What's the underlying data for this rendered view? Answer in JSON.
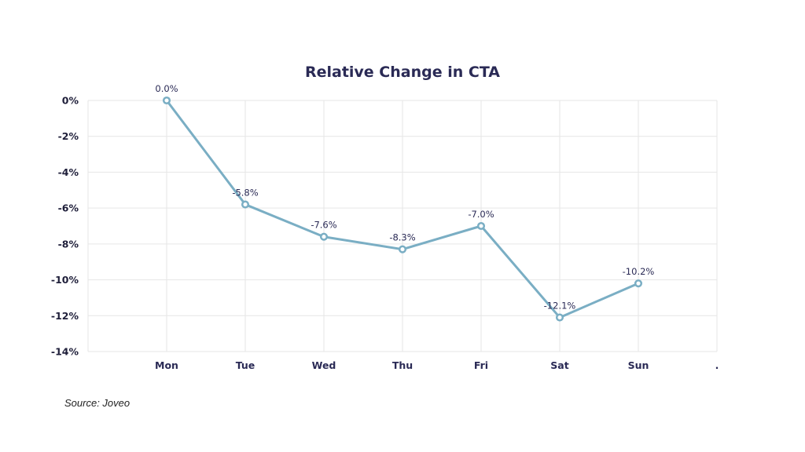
{
  "chart_data": {
    "type": "line",
    "title": "Relative Change in CTA",
    "xlabel": "",
    "ylabel": "",
    "categories": [
      "Mon",
      "Tue",
      "Wed",
      "Thu",
      "Fri",
      "Sat",
      "Sun",
      "."
    ],
    "series": [
      {
        "name": "Relative Change in CTA",
        "color": "#7aaec4",
        "values": [
          0.0,
          -5.8,
          -7.6,
          -8.3,
          -7.0,
          -12.1,
          -10.2,
          null
        ],
        "labels": [
          "0.0%",
          "-5.8%",
          "-7.6%",
          "-8.3%",
          "-7.0%",
          "-12.1%",
          "-10.2%",
          ""
        ]
      }
    ],
    "ylim": [
      -14,
      0
    ],
    "yticks": [
      0,
      -2,
      -4,
      -6,
      -8,
      -10,
      -12,
      -14
    ],
    "ytick_labels": [
      "0%",
      "-2%",
      "-4%",
      "-6%",
      "-8%",
      "-10%",
      "-12%",
      "-14%"
    ],
    "grid": true,
    "legend": "none"
  },
  "footer": {
    "source": "Source: Joveo"
  }
}
